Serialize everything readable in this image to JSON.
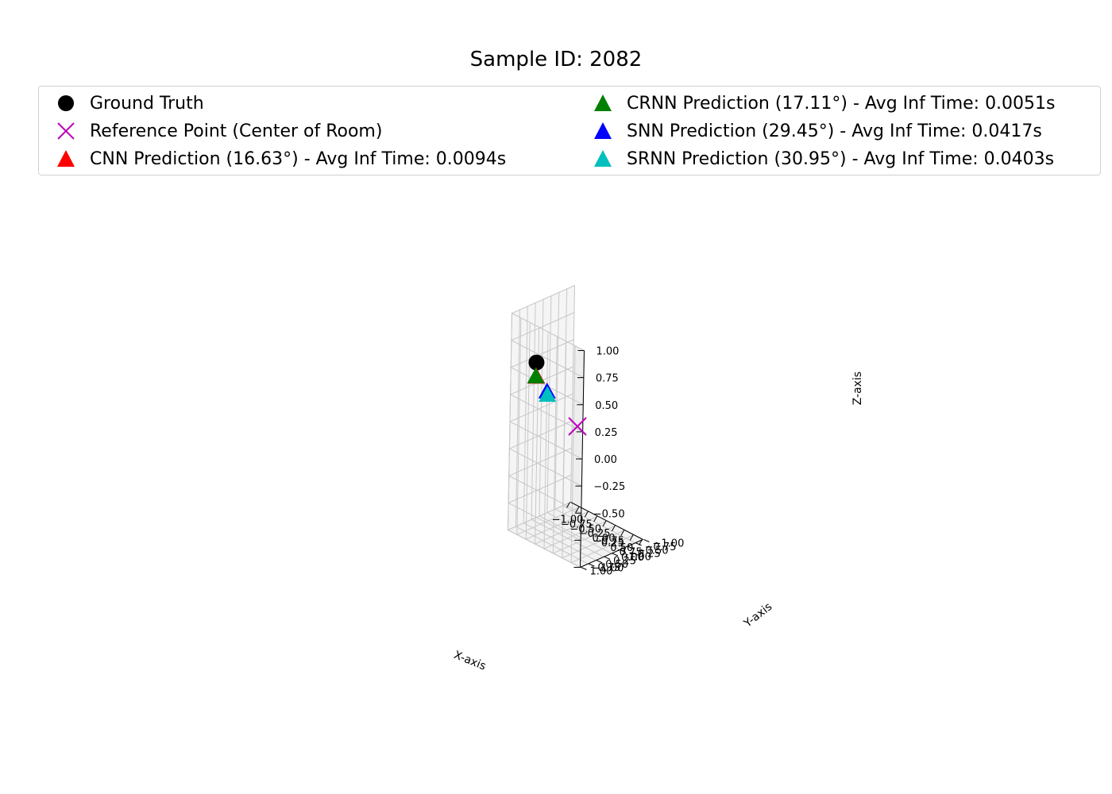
{
  "chart_data": {
    "type": "scatter3d",
    "title": "Sample ID: 2082",
    "xlabel": "X-axis",
    "ylabel": "Y-axis",
    "zlabel": "Z-axis",
    "xlim": [
      -1,
      1
    ],
    "ylim": [
      -1,
      1
    ],
    "zlim": [
      -1,
      1
    ],
    "ticks": [
      -1.0,
      -0.75,
      -0.5,
      -0.25,
      0.0,
      0.25,
      0.5,
      0.75,
      1.0
    ],
    "tick_labels": [
      "−1.00",
      "−0.75",
      "−0.50",
      "−0.25",
      "0.00",
      "0.25",
      "0.50",
      "0.75",
      "1.00"
    ],
    "grid": true,
    "legend_position": "top",
    "series": [
      {
        "name": "Ground Truth",
        "marker": "circle",
        "color": "#000000",
        "x": -0.66,
        "y": 0.58,
        "z": 0.55
      },
      {
        "name": "Reference Point (Center of Room)",
        "marker": "x",
        "color": "#bf00bf",
        "x": 0.0,
        "y": 0.0,
        "z": 0.0
      },
      {
        "name": "CNN Prediction (16.63°) - Avg Inf Time: 0.0094s",
        "marker": "triangle",
        "color": "#ff0000",
        "x": -0.72,
        "y": 0.5,
        "z": 0.4
      },
      {
        "name": "CRNN Prediction (17.11°) - Avg Inf Time: 0.0051s",
        "marker": "triangle",
        "color": "#008000",
        "x": -0.74,
        "y": 0.5,
        "z": 0.4
      },
      {
        "name": "SNN Prediction (29.45°) - Avg Inf Time: 0.0417s",
        "marker": "triangle",
        "color": "#0000ff",
        "x": -0.1,
        "y": 0.88,
        "z": 0.42
      },
      {
        "name": "SRNN Prediction (30.95°) - Avg Inf Time: 0.0403s",
        "marker": "triangle",
        "color": "#00bfbf",
        "x": -0.09,
        "y": 0.88,
        "z": 0.39
      }
    ]
  }
}
